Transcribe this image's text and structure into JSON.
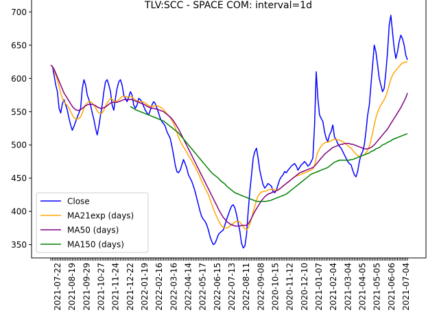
{
  "chart_data": {
    "type": "line",
    "title": "TLV:SCC - SPACE COM: interval=1d",
    "ylim": [
      330,
      720
    ],
    "yticks": [
      350,
      400,
      450,
      500,
      550,
      600,
      650,
      700
    ],
    "xtick_labels": [
      "2021-07-22",
      "2021-08-19",
      "2021-09-29",
      "2021-10-27",
      "2021-11-24",
      "2021-12-22",
      "2022-01-19",
      "2022-02-16",
      "2022-03-16",
      "2022-04-14",
      "2022-05-17",
      "2022-06-15",
      "2022-07-13",
      "2022-08-11",
      "2022-09-08",
      "2020-10-15",
      "2020-11-12",
      "2020-12-10",
      "2021-01-07",
      "2021-02-04",
      "2021-03-04",
      "2021-04-05",
      "2021-05-05",
      "2021-06-06",
      "2021-07-04"
    ],
    "legend": {
      "placement": "lower-left"
    },
    "series": [
      {
        "name": "Close",
        "color": "#0000ff",
        "values": [
          620,
          618,
          605,
          590,
          580,
          555,
          548,
          562,
          568,
          560,
          552,
          540,
          530,
          522,
          528,
          535,
          542,
          548,
          555,
          585,
          598,
          590,
          575,
          568,
          560,
          548,
          538,
          525,
          515,
          528,
          545,
          560,
          580,
          595,
          598,
          590,
          580,
          560,
          552,
          570,
          585,
          595,
          598,
          590,
          575,
          570,
          565,
          572,
          580,
          575,
          560,
          555,
          560,
          570,
          568,
          565,
          558,
          552,
          548,
          545,
          552,
          560,
          565,
          562,
          555,
          548,
          540,
          535,
          532,
          528,
          520,
          515,
          510,
          498,
          485,
          470,
          460,
          458,
          462,
          470,
          478,
          472,
          465,
          455,
          450,
          445,
          438,
          430,
          420,
          410,
          400,
          392,
          388,
          385,
          380,
          372,
          362,
          355,
          350,
          352,
          358,
          365,
          368,
          370,
          372,
          380,
          388,
          395,
          402,
          408,
          410,
          405,
          395,
          382,
          370,
          352,
          345,
          348,
          365,
          400,
          430,
          455,
          480,
          490,
          495,
          480,
          462,
          450,
          440,
          435,
          438,
          442,
          440,
          438,
          430,
          428,
          432,
          440,
          448,
          452,
          455,
          460,
          458,
          462,
          465,
          468,
          470,
          472,
          468,
          462,
          466,
          470,
          472,
          475,
          472,
          468,
          470,
          475,
          480,
          530,
          610,
          570,
          545,
          540,
          535,
          520,
          510,
          505,
          515,
          520,
          530,
          512,
          508,
          502,
          498,
          495,
          490,
          485,
          480,
          475,
          472,
          470,
          462,
          455,
          452,
          460,
          475,
          485,
          490,
          500,
          520,
          545,
          560,
          590,
          620,
          650,
          640,
          620,
          600,
          590,
          580,
          585,
          610,
          640,
          680,
          695,
          670,
          645,
          630,
          640,
          655,
          665,
          660,
          650,
          635,
          628
        ]
      },
      {
        "name": "MA21exp (days)",
        "color": "#ffa500",
        "values": [
          620,
          618,
          612,
          605,
          598,
          588,
          578,
          570,
          565,
          562,
          559,
          555,
          550,
          545,
          541,
          539,
          539,
          540,
          542,
          548,
          555,
          560,
          563,
          565,
          565,
          563,
          560,
          556,
          551,
          548,
          547,
          548,
          552,
          558,
          563,
          567,
          570,
          569,
          566,
          565,
          566,
          568,
          570,
          573,
          573,
          573,
          572,
          572,
          572,
          572,
          570,
          568,
          566,
          565,
          565,
          565,
          564,
          563,
          561,
          559,
          558,
          558,
          558,
          559,
          559,
          558,
          557,
          555,
          553,
          550,
          547,
          544,
          541,
          537,
          532,
          526,
          519,
          512,
          506,
          501,
          497,
          493,
          489,
          484,
          480,
          476,
          471,
          467,
          462,
          457,
          451,
          445,
          440,
          435,
          430,
          425,
          418,
          411,
          404,
          398,
          392,
          387,
          382,
          378,
          376,
          375,
          375,
          376,
          378,
          380,
          382,
          384,
          385,
          385,
          384,
          381,
          377,
          374,
          372,
          375,
          381,
          389,
          399,
          408,
          417,
          423,
          427,
          429,
          430,
          430,
          431,
          432,
          433,
          433,
          433,
          432,
          432,
          433,
          434,
          436,
          438,
          440,
          442,
          444,
          446,
          448,
          450,
          452,
          453,
          454,
          455,
          456,
          457,
          458,
          459,
          460,
          461,
          462,
          464,
          469,
          481,
          489,
          494,
          498,
          501,
          503,
          504,
          504,
          505,
          506,
          508,
          508,
          508,
          508,
          507,
          506,
          505,
          503,
          501,
          499,
          497,
          495,
          492,
          489,
          486,
          484,
          483,
          483,
          484,
          485,
          488,
          492,
          498,
          507,
          518,
          530,
          541,
          549,
          555,
          560,
          564,
          568,
          574,
          581,
          590,
          599,
          605,
          609,
          612,
          615,
          618,
          621,
          623,
          624,
          625,
          625
        ]
      },
      {
        "name": "MA50 (days)",
        "color": "#800080",
        "values": [
          620,
          618,
          614,
          608,
          602,
          596,
          590,
          584,
          578,
          574,
          570,
          566,
          562,
          558,
          555,
          553,
          552,
          552,
          553,
          555,
          557,
          559,
          560,
          561,
          561,
          561,
          560,
          559,
          557,
          556,
          555,
          555,
          556,
          557,
          559,
          561,
          563,
          564,
          564,
          564,
          564,
          565,
          566,
          567,
          568,
          568,
          568,
          568,
          568,
          568,
          567,
          566,
          565,
          564,
          563,
          562,
          561,
          560,
          558,
          557,
          556,
          555,
          555,
          554,
          554,
          553,
          552,
          551,
          550,
          548,
          546,
          544,
          542,
          539,
          536,
          532,
          528,
          524,
          519,
          514,
          509,
          504,
          499,
          494,
          489,
          484,
          479,
          474,
          469,
          464,
          459,
          454,
          449,
          444,
          439,
          434,
          429,
          424,
          419,
          414,
          409,
          404,
          399,
          395,
          391,
          388,
          385,
          383,
          381,
          380,
          379,
          378,
          378,
          378,
          378,
          379,
          379,
          379,
          379,
          381,
          385,
          390,
          395,
          400,
          404,
          408,
          412,
          416,
          419,
          422,
          424,
          426,
          427,
          428,
          429,
          430,
          431,
          432,
          434,
          436,
          438,
          440,
          442,
          444,
          446,
          448,
          450,
          452,
          454,
          456,
          458,
          459,
          460,
          461,
          462,
          463,
          464,
          465,
          466,
          468,
          471,
          474,
          477,
          480,
          483,
          486,
          488,
          490,
          492,
          494,
          496,
          497,
          498,
          499,
          500,
          501,
          501,
          502,
          502,
          502,
          502,
          501,
          501,
          500,
          499,
          498,
          497,
          496,
          495,
          494,
          494,
          494,
          495,
          496,
          498,
          500,
          503,
          506,
          509,
          512,
          515,
          518,
          521,
          524,
          528,
          532,
          536,
          540,
          544,
          548,
          552,
          556,
          561,
          566,
          571,
          578
        ]
      },
      {
        "name": "MA150 (days)",
        "color": "#008000",
        "values": [
          558,
          556,
          555,
          553,
          552,
          551,
          550,
          549,
          548,
          547,
          546,
          545,
          544,
          543,
          542,
          541,
          540,
          539,
          538,
          537,
          536,
          534,
          532,
          530,
          528,
          526,
          524,
          522,
          520,
          518,
          515,
          512,
          509,
          506,
          503,
          500,
          497,
          494,
          491,
          488,
          485,
          482,
          479,
          476,
          473,
          470,
          467,
          464,
          461,
          458,
          456,
          454,
          452,
          450,
          447,
          445,
          443,
          441,
          438,
          436,
          434,
          432,
          430,
          428,
          427,
          426,
          425,
          424,
          423,
          422,
          421,
          420,
          419,
          418,
          417,
          416,
          415,
          415,
          415,
          415,
          415,
          415,
          415,
          416,
          416,
          417,
          418,
          419,
          420,
          421,
          422,
          423,
          424,
          425,
          426,
          428,
          430,
          432,
          434,
          436,
          438,
          440,
          442,
          444,
          446,
          448,
          450,
          452,
          454,
          456,
          457,
          458,
          459,
          460,
          461,
          462,
          463,
          464,
          465,
          466,
          468,
          470,
          472,
          474,
          475,
          476,
          477,
          477,
          477,
          477,
          477,
          477,
          477,
          478,
          478,
          479,
          480,
          481,
          482,
          483,
          484,
          485,
          486,
          487,
          488,
          490,
          491,
          492,
          494,
          495,
          496,
          498,
          500,
          501,
          502,
          504,
          505,
          506,
          508,
          509,
          510,
          511,
          512,
          513,
          514,
          515,
          516,
          517
        ]
      }
    ]
  }
}
